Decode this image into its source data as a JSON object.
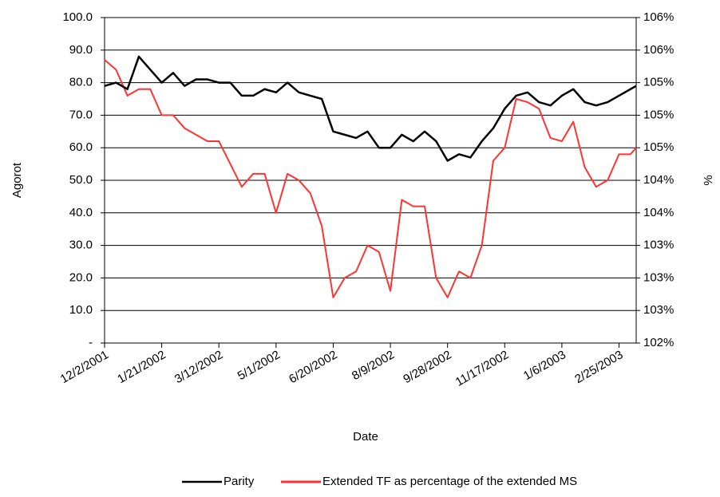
{
  "chart_data": {
    "type": "line",
    "x_label": "Date",
    "y_label": "Agorot",
    "y2_label": "%",
    "x": [
      "12/2/2001",
      "12/12/2001",
      "12/22/2001",
      "1/1/2002",
      "1/11/2002",
      "1/21/2002",
      "1/31/2002",
      "2/10/2002",
      "2/20/2002",
      "3/2/2002",
      "3/12/2002",
      "3/22/2002",
      "4/1/2002",
      "4/11/2002",
      "4/21/2002",
      "5/1/2002",
      "5/11/2002",
      "5/21/2002",
      "5/31/2002",
      "6/10/2002",
      "6/20/2002",
      "6/30/2002",
      "7/10/2002",
      "7/20/2002",
      "7/30/2002",
      "8/9/2002",
      "8/19/2002",
      "8/29/2002",
      "9/8/2002",
      "9/18/2002",
      "9/28/2002",
      "10/8/2002",
      "10/18/2002",
      "10/28/2002",
      "11/7/2002",
      "11/17/2002",
      "11/27/2002",
      "12/7/2002",
      "12/17/2002",
      "12/27/2002",
      "1/6/2003",
      "1/16/2003",
      "1/26/2003",
      "2/5/2003",
      "2/15/2003",
      "2/25/2003",
      "3/7/2003",
      "3/12/2003"
    ],
    "series": [
      {
        "name": "Parity",
        "color": "#000000",
        "values": [
          79,
          80,
          78,
          88,
          84,
          80,
          83,
          79,
          81,
          81,
          80,
          80,
          76,
          76,
          78,
          77,
          80,
          77,
          76,
          75,
          65,
          64,
          63,
          65,
          60,
          60,
          64,
          62,
          65,
          62,
          56,
          58,
          57,
          62,
          66,
          72,
          76,
          77,
          74,
          73,
          76,
          78,
          74,
          73,
          74,
          76,
          78,
          79
        ]
      },
      {
        "name": "Extended TF as percentage of the extended MS",
        "color": "#ff3333",
        "axis": "y2",
        "values": [
          105.68,
          105.56,
          105.24,
          105.32,
          105.32,
          105.0,
          105.0,
          104.84,
          104.76,
          104.68,
          104.68,
          104.4,
          104.12,
          104.28,
          104.28,
          103.8,
          104.28,
          104.2,
          104.04,
          103.64,
          102.76,
          103.0,
          103.08,
          103.4,
          103.32,
          102.84,
          103.96,
          103.88,
          103.88,
          103.0,
          102.76,
          103.08,
          103.0,
          103.4,
          104.44,
          104.6,
          105.2,
          105.16,
          105.08,
          104.72,
          104.68,
          104.92,
          104.36,
          104.12,
          104.2,
          104.52,
          104.52,
          104.6
        ]
      }
    ],
    "xlim": [
      "12/2/2001",
      "3/12/2003"
    ],
    "xticks": [
      "12/2/2001",
      "1/21/2002",
      "3/12/2002",
      "5/1/2002",
      "6/20/2002",
      "8/9/2002",
      "9/28/2002",
      "11/17/2002",
      "1/6/2003",
      "2/25/2003"
    ],
    "ylim": [
      0,
      100
    ],
    "yticks": [
      {
        "value": 0,
        "label": "-"
      },
      {
        "value": 10,
        "label": "10.0"
      },
      {
        "value": 20,
        "label": "20.0"
      },
      {
        "value": 30,
        "label": "30.0"
      },
      {
        "value": 40,
        "label": "40.0"
      },
      {
        "value": 50,
        "label": "50.0"
      },
      {
        "value": 60,
        "label": "60.0"
      },
      {
        "value": 70,
        "label": "70.0"
      },
      {
        "value": 80,
        "label": "80.0"
      },
      {
        "value": 90,
        "label": "90.0"
      },
      {
        "value": 100,
        "label": "100.0"
      }
    ],
    "y2lim": [
      102.2,
      106.2
    ],
    "y2ticks": [
      {
        "value": 102.2,
        "label": "102%"
      },
      {
        "value": 102.6,
        "label": "103%"
      },
      {
        "value": 103.0,
        "label": "103%"
      },
      {
        "value": 103.4,
        "label": "103%"
      },
      {
        "value": 103.8,
        "label": "104%"
      },
      {
        "value": 104.2,
        "label": "104%"
      },
      {
        "value": 104.6,
        "label": "105%"
      },
      {
        "value": 105.0,
        "label": "105%"
      },
      {
        "value": 105.4,
        "label": "105%"
      },
      {
        "value": 105.8,
        "label": "106%"
      },
      {
        "value": 106.2,
        "label": "106%"
      }
    ],
    "grid": true,
    "legend": "bottom"
  }
}
